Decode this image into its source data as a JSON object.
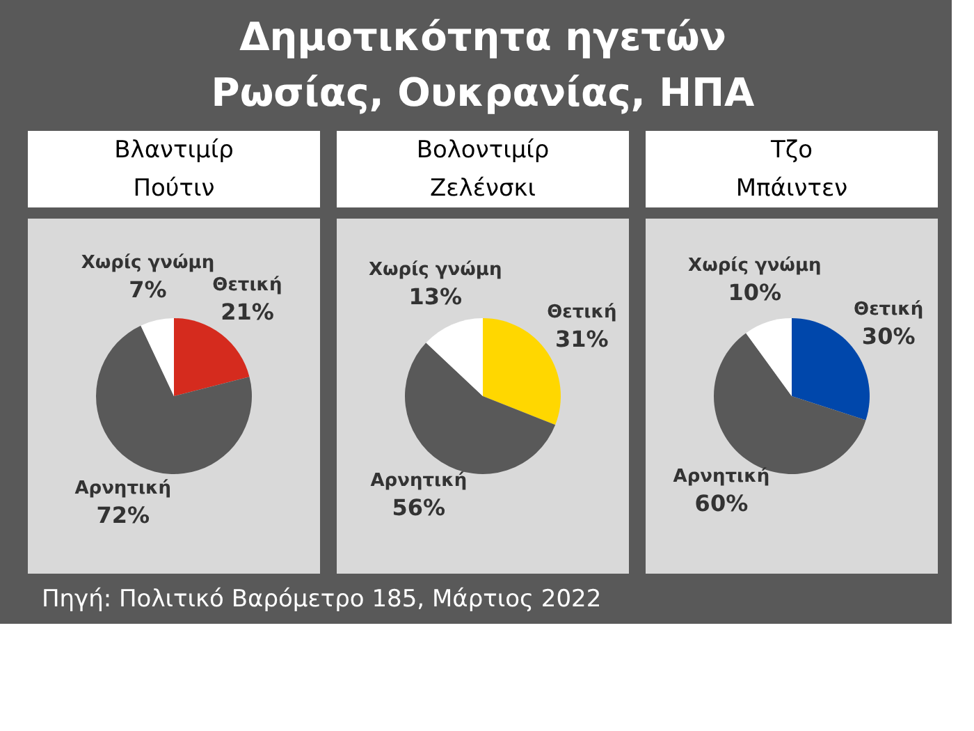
{
  "chart_data": [
    {
      "type": "pie",
      "title": "Βλαντιμίρ\nΠούτιν",
      "annotations": [
        "Δημοτικότητα ηγετών\nΡωσίας, Ουκρανίας, ΗΠΑ"
      ],
      "categories": [
        "Θετική",
        "Αρνητική",
        "Χωρίς γνώμη"
      ],
      "values": [
        21,
        72,
        7
      ],
      "value_labels": [
        "21%",
        "72%",
        "7%"
      ],
      "colors": [
        "#d52b1e",
        "#595959",
        "#ffffff"
      ]
    },
    {
      "type": "pie",
      "title": "Βολοντιμίρ\nΖελένσκι",
      "categories": [
        "Θετική",
        "Αρνητική",
        "Χωρίς γνώμη"
      ],
      "values": [
        31,
        56,
        13
      ],
      "value_labels": [
        "31%",
        "56%",
        "13%"
      ],
      "colors": [
        "#ffd700",
        "#595959",
        "#ffffff"
      ]
    },
    {
      "type": "pie",
      "title": "Τζο\nΜπάιντεν",
      "annotations": [
        "Πηγή: Πολιτικό Βαρόμετρο 185, Μάρτιος 2022"
      ],
      "categories": [
        "Θετική",
        "Αρνητική",
        "Χωρίς γνώμη"
      ],
      "values": [
        30,
        60,
        10
      ],
      "value_labels": [
        "30%",
        "60%",
        "10%"
      ],
      "colors": [
        "#0047ab",
        "#595959",
        "#ffffff"
      ]
    }
  ]
}
